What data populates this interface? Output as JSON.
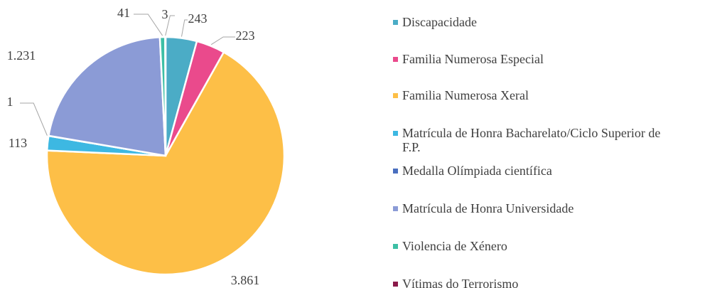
{
  "chart_data": {
    "type": "pie",
    "categories": [
      "Discapacidade",
      "Familia Numerosa Especial",
      "Familia Numerosa Xeral",
      "Matrícula de Honra Bacharelato/Ciclo Superior de F.P.",
      "Medalla Olímpiada científica",
      "Matrícula de Honra Universidade",
      "Violencia de Xénero",
      "Vítimas do Terrorismo"
    ],
    "values": [
      243,
      223,
      3861,
      113,
      1,
      1231,
      41,
      3
    ],
    "value_labels": [
      "243",
      "223",
      "3.861",
      "113",
      "1",
      "1.231",
      "41",
      "3"
    ],
    "colors": [
      "#4bacc6",
      "#ea4a8c",
      "#fdbf47",
      "#3db8e2",
      "#4a6fbf",
      "#8b9bd6",
      "#3dbfa5",
      "#8b1a4a"
    ],
    "legend": "right"
  }
}
